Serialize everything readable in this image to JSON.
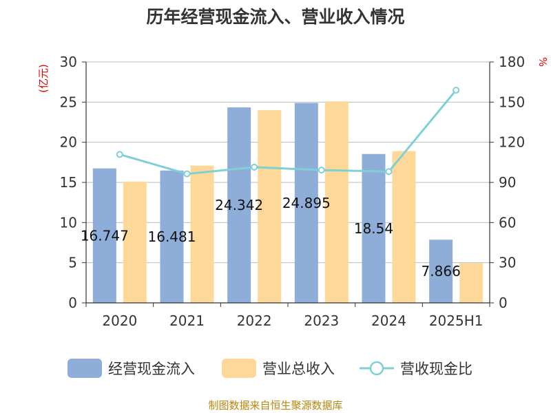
{
  "title": "历年经营现金流入、营业收入情况",
  "source": "制图数据来自恒生聚源数据库",
  "colors": {
    "cash_inflow": "#8eadd9",
    "revenue": "#fed898",
    "ratio": "#7fd0d4",
    "axis": "#333333",
    "grid": "#bbbbbb",
    "unit": "#dd0000",
    "source": "#b8860b"
  },
  "chart_data": {
    "type": "bar",
    "categories": [
      "2020",
      "2021",
      "2022",
      "2023",
      "2024",
      "2025H1"
    ],
    "y_left": {
      "unit": "(亿元)",
      "min": 0,
      "max": 30,
      "ticks": [
        0,
        5,
        10,
        15,
        20,
        25,
        30
      ]
    },
    "y_right": {
      "unit": "%",
      "min": 0,
      "max": 180,
      "ticks": [
        0,
        30,
        60,
        90,
        120,
        150,
        180
      ]
    },
    "grid": true,
    "legend_position": "bottom",
    "series": [
      {
        "name": "经营现金流入",
        "type": "bar",
        "axis": "left",
        "values": [
          16.747,
          16.481,
          24.342,
          24.895,
          18.54,
          7.866
        ],
        "labels": [
          "16.747",
          "16.481",
          "24.342",
          "24.895",
          "18.54",
          "7.866"
        ]
      },
      {
        "name": "营业总收入",
        "type": "bar",
        "axis": "left",
        "values": [
          15.1,
          17.1,
          24.0,
          25.1,
          18.9,
          4.95
        ]
      },
      {
        "name": "营收现金比",
        "type": "line",
        "axis": "right",
        "values": [
          110.9,
          96.4,
          101.4,
          99.2,
          98.1,
          158.9
        ]
      }
    ]
  }
}
